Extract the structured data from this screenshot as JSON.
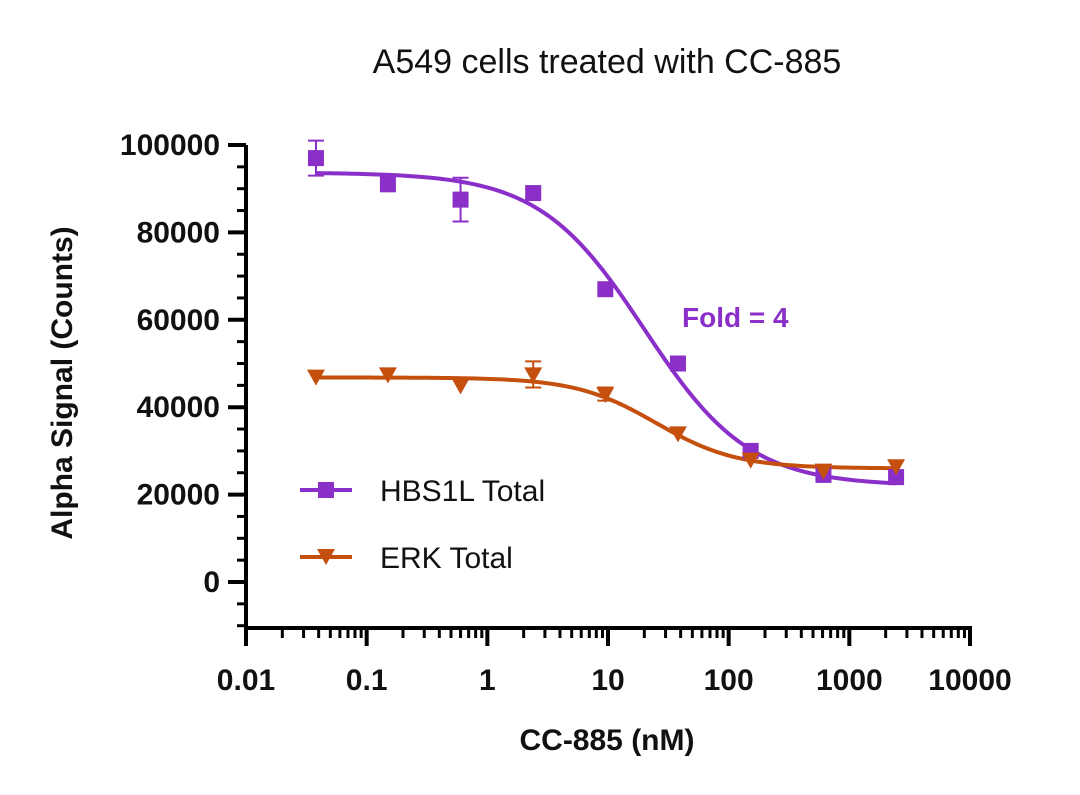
{
  "chart_data": {
    "type": "scatter",
    "title": "A549 cells treated with CC-885",
    "xlabel": "CC-885 (nM)",
    "ylabel": "Alpha Signal (Counts)",
    "xscale": "log",
    "xlim": [
      0.01,
      10000
    ],
    "ylim": [
      -10000,
      100000
    ],
    "x_ticks": [
      0.01,
      0.1,
      1,
      10,
      100,
      1000,
      10000
    ],
    "x_tick_labels": [
      "0.01",
      "0.1",
      "1",
      "10",
      "100",
      "1000",
      "10000"
    ],
    "y_ticks": [
      0,
      20000,
      40000,
      60000,
      80000,
      100000
    ],
    "y_tick_labels": [
      "0",
      "20000",
      "40000",
      "60000",
      "80000",
      "100000"
    ],
    "grid": false,
    "legend_position": "bottom-left",
    "series": [
      {
        "name": "HBS1L Total",
        "color": "#8b2fc9",
        "marker": "square",
        "x": [
          0.038,
          0.15,
          0.6,
          2.4,
          9.5,
          38,
          152,
          610,
          2440
        ],
        "y": [
          97000,
          91000,
          87500,
          89000,
          67000,
          50000,
          30000,
          24500,
          24000
        ],
        "err": [
          4000,
          0,
          5000,
          1000,
          0,
          0,
          0,
          0,
          0
        ],
        "fit": {
          "top": 93700,
          "bottom": 22000,
          "ec50": 20,
          "hill": 1.0
        }
      },
      {
        "name": "ERK Total",
        "color": "#c5500e",
        "marker": "triangle-down",
        "x": [
          0.038,
          0.15,
          0.6,
          2.4,
          9.5,
          38,
          152,
          610,
          2440
        ],
        "y": [
          47000,
          47500,
          45000,
          47500,
          43000,
          34000,
          28000,
          25500,
          26500
        ],
        "err": [
          0,
          0,
          0,
          3000,
          1500,
          0,
          0,
          0,
          0
        ],
        "fit": {
          "top": 46800,
          "bottom": 26000,
          "ec50": 25,
          "hill": 1.3
        }
      }
    ],
    "annotations": [
      {
        "text": "Fold = 4",
        "color": "#8b2fc9"
      }
    ]
  }
}
